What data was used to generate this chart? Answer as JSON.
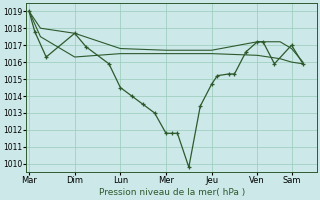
{
  "title": "",
  "xlabel": "Pression niveau de la mer( hPa )",
  "ylabel": "",
  "background_color": "#cce8e8",
  "grid_color": "#99ccbb",
  "line_color": "#2d5a2d",
  "ylim": [
    1009.5,
    1019.5
  ],
  "yticks": [
    1010,
    1011,
    1012,
    1013,
    1014,
    1015,
    1016,
    1017,
    1018,
    1019
  ],
  "x_tick_labels": [
    "Mar",
    "Dim",
    "Lun",
    "Mer",
    "Jeu",
    "Ven",
    "Sam"
  ],
  "x_tick_positions": [
    0,
    8,
    16,
    24,
    32,
    40,
    46
  ],
  "xlim": [
    -0.5,
    50.5
  ],
  "series_detail": {
    "x": [
      0,
      1,
      3,
      8,
      10,
      14,
      16,
      18,
      20,
      22,
      24,
      25,
      26,
      28,
      30,
      32,
      33,
      35,
      36,
      38,
      40,
      41,
      43,
      46,
      48
    ],
    "y": [
      1019.0,
      1017.8,
      1016.3,
      1017.7,
      1016.9,
      1015.9,
      1014.5,
      1014.0,
      1013.5,
      1013.0,
      1011.8,
      1011.8,
      1011.8,
      1009.8,
      1013.4,
      1014.7,
      1015.2,
      1015.3,
      1015.3,
      1016.6,
      1017.2,
      1017.2,
      1015.9,
      1017.0,
      1015.9
    ]
  },
  "series_smooth1": {
    "x": [
      0,
      2,
      8,
      16,
      24,
      32,
      40,
      44,
      46,
      48
    ],
    "y": [
      1019.0,
      1018.0,
      1017.7,
      1016.8,
      1016.7,
      1016.7,
      1017.2,
      1017.2,
      1016.8,
      1016.0
    ]
  },
  "series_smooth2": {
    "x": [
      0,
      2,
      8,
      16,
      24,
      32,
      40,
      44,
      46,
      48
    ],
    "y": [
      1019.0,
      1017.5,
      1016.3,
      1016.5,
      1016.5,
      1016.5,
      1016.4,
      1016.2,
      1016.0,
      1015.9
    ]
  }
}
